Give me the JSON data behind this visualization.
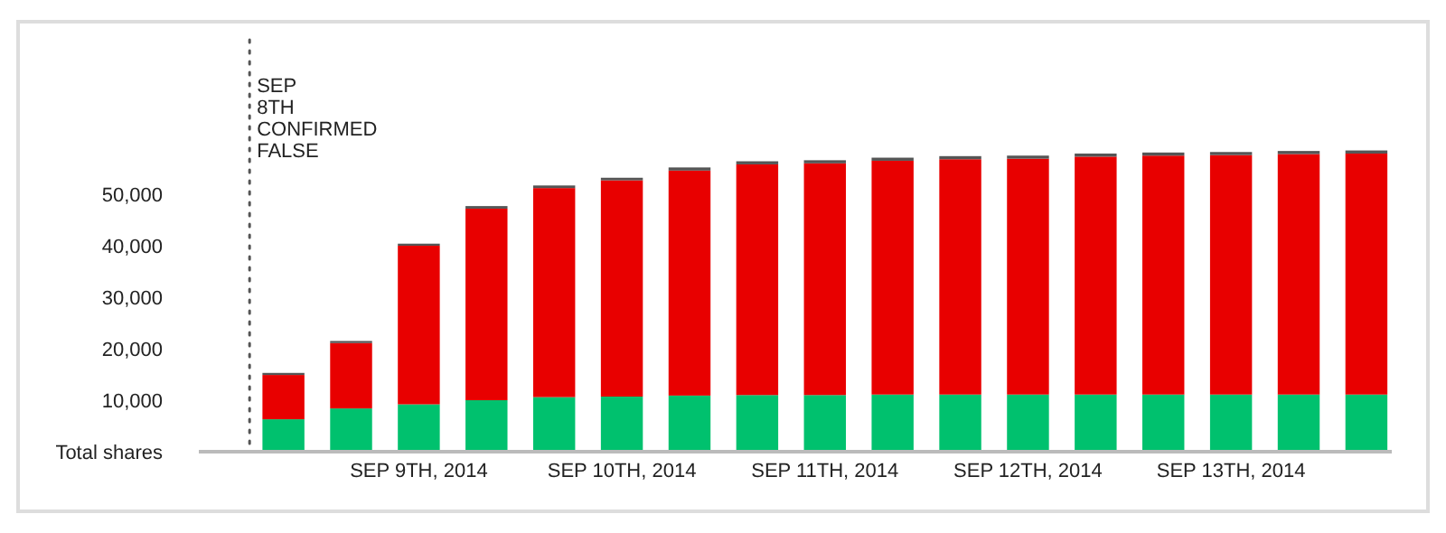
{
  "chart_data": {
    "type": "bar",
    "stacked": true,
    "x": [
      "2014-09-08T08:00",
      "2014-09-08T16:00",
      "2014-09-09T00:00",
      "2014-09-09T08:00",
      "2014-09-09T16:00",
      "2014-09-10T00:00",
      "2014-09-10T08:00",
      "2014-09-10T16:00",
      "2014-09-11T00:00",
      "2014-09-11T08:00",
      "2014-09-11T16:00",
      "2014-09-12T00:00",
      "2014-09-12T08:00",
      "2014-09-12T16:00",
      "2014-09-13T00:00",
      "2014-09-13T08:00",
      "2014-09-13T16:00"
    ],
    "series": [
      {
        "color": "#00c16e",
        "values": [
          6300,
          8400,
          9200,
          10000,
          10600,
          10700,
          10900,
          11000,
          11000,
          11100,
          11100,
          11100,
          11100,
          11100,
          11100,
          11100,
          11100
        ]
      },
      {
        "color": "#e80000",
        "values": [
          8600,
          12700,
          30800,
          37200,
          40600,
          42000,
          43700,
          44800,
          45000,
          45400,
          45700,
          45800,
          46200,
          46400,
          46500,
          46700,
          46800
        ]
      },
      {
        "color": "#555555",
        "values": [
          400,
          400,
          400,
          500,
          500,
          500,
          600,
          600,
          600,
          600,
          600,
          600,
          600,
          600,
          600,
          600,
          600
        ]
      }
    ],
    "xlim": [
      "2014-09-07T22:00",
      "2014-09-13T19:00"
    ],
    "xticks": [
      {
        "value": "2014-09-09T00:00",
        "label": "SEP 9TH, 2014"
      },
      {
        "value": "2014-09-10T00:00",
        "label": "SEP 10TH, 2014"
      },
      {
        "value": "2014-09-11T00:00",
        "label": "SEP 11TH, 2014"
      },
      {
        "value": "2014-09-12T00:00",
        "label": "SEP 12TH, 2014"
      },
      {
        "value": "2014-09-13T00:00",
        "label": "SEP 13TH, 2014"
      }
    ],
    "ylim": [
      0,
      80000
    ],
    "yticks": [
      {
        "value": 0,
        "label": "Total shares"
      },
      {
        "value": 10000,
        "label": "10,000"
      },
      {
        "value": 20000,
        "label": "20,000"
      },
      {
        "value": 30000,
        "label": "30,000"
      },
      {
        "value": 40000,
        "label": "40,000"
      },
      {
        "value": 50000,
        "label": "50,000"
      }
    ],
    "ref_lines": [
      {
        "axis": "x",
        "value": "2014-09-08T04:00",
        "label": "SEP 8TH CONFIRMED FALSE",
        "line_style": "dotted",
        "color": "#555555"
      }
    ]
  }
}
